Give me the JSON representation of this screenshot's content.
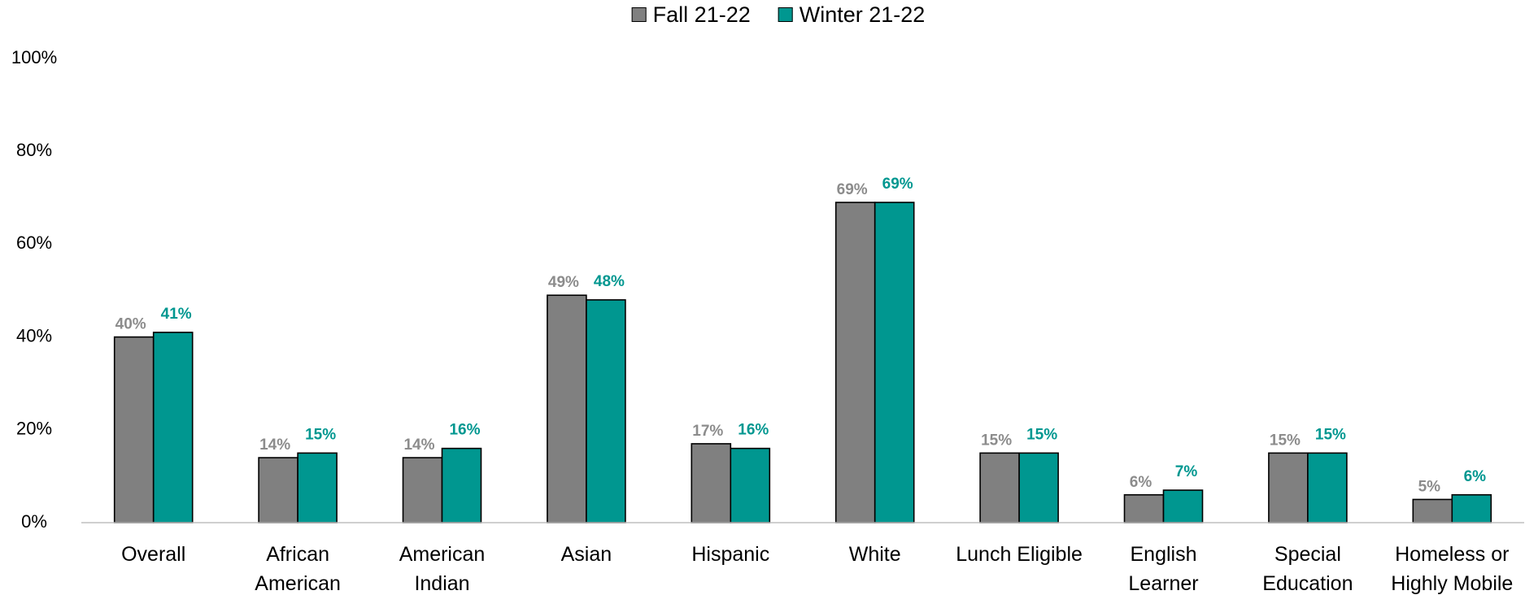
{
  "chart_data": {
    "type": "bar",
    "categories": [
      "Overall",
      "African\nAmerican",
      "American\nIndian",
      "Asian",
      "Hispanic",
      "White",
      "Lunch Eligible",
      "English\nLearner",
      "Special\nEducation",
      "Homeless or\nHighly Mobile"
    ],
    "series": [
      {
        "name": "Fall 21-22",
        "color": "#808080",
        "label_color": "#8c8c8c",
        "values": [
          40,
          14,
          14,
          49,
          17,
          69,
          15,
          6,
          15,
          5
        ],
        "value_labels": [
          "40%",
          "14%",
          "14%",
          "49%",
          "17%",
          "69%",
          "15%",
          "6%",
          "15%",
          "5%"
        ]
      },
      {
        "name": "Winter 21-22",
        "color": "#009790",
        "label_color": "#009790",
        "values": [
          41,
          15,
          16,
          48,
          16,
          69,
          15,
          7,
          15,
          6
        ],
        "value_labels": [
          "41%",
          "15%",
          "16%",
          "48%",
          "16%",
          "69%",
          "15%",
          "7%",
          "15%",
          "6%"
        ]
      }
    ],
    "ylim": [
      0,
      100
    ],
    "yticks": [
      {
        "value": 0,
        "label": "0%"
      },
      {
        "value": 20,
        "label": "20%"
      },
      {
        "value": 40,
        "label": "40%"
      },
      {
        "value": 60,
        "label": "60%"
      },
      {
        "value": 80,
        "label": "80%"
      },
      {
        "value": 100,
        "label": "100%"
      }
    ],
    "grid": false,
    "legend": "top"
  }
}
